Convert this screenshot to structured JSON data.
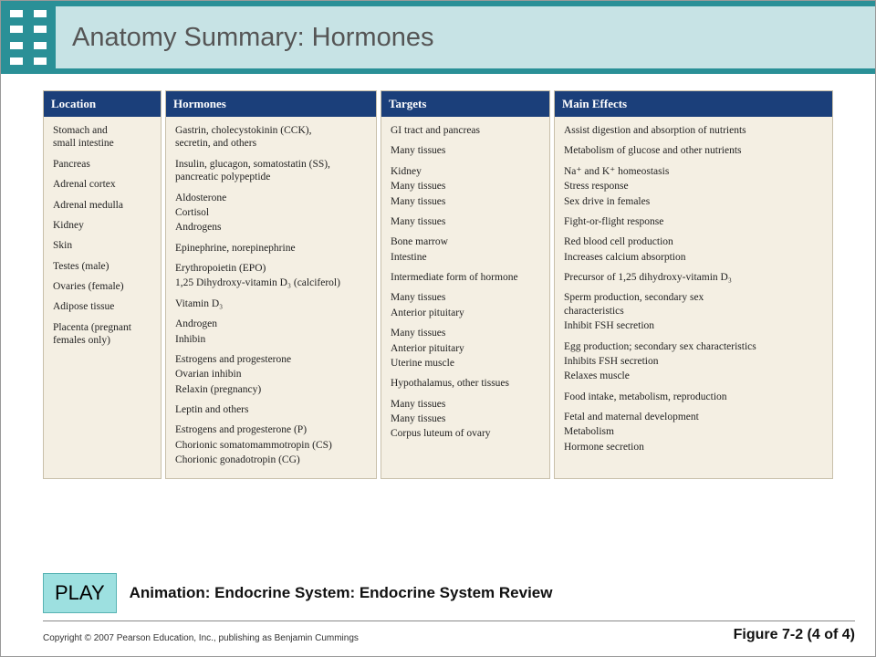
{
  "theme": {
    "header_bg": "#2a9097",
    "header_panel_bg": "#c7e3e5",
    "col_header_bg": "#1b3f7a",
    "col_header_fg": "#ffffff",
    "col_body_bg": "#f4efe3",
    "play_bg": "#9de0e0"
  },
  "header": {
    "title": "Anatomy Summary: Hormones"
  },
  "columns": [
    {
      "header": "Location",
      "groups": [
        [
          "Stomach and\n small intestine"
        ],
        [
          "Pancreas"
        ],
        [
          "Adrenal cortex",
          " ",
          " "
        ],
        [
          "Adrenal medulla"
        ],
        [
          "Kidney",
          " "
        ],
        [
          "Skin"
        ],
        [
          "Testes (male)",
          " "
        ],
        [
          "Ovaries (female)",
          " ",
          " "
        ],
        [
          "Adipose tissue"
        ],
        [
          "Placenta (pregnant\n females only)",
          " "
        ]
      ]
    },
    {
      "header": "Hormones",
      "groups": [
        [
          "Gastrin, cholecystokinin (CCK),\n secretin, and others"
        ],
        [
          "Insulin, glucagon, somatostatin (SS),\n pancreatic polypeptide"
        ],
        [
          "Aldosterone",
          "Cortisol",
          "Androgens"
        ],
        [
          "Epinephrine, norepinephrine"
        ],
        [
          "Erythropoietin (EPO)",
          "1,25 Dihydroxy-vitamin D₃ (calciferol)"
        ],
        [
          "Vitamin D₃"
        ],
        [
          "Androgen",
          "Inhibin"
        ],
        [
          "Estrogens and progesterone",
          "Ovarian inhibin",
          "Relaxin (pregnancy)"
        ],
        [
          "Leptin and others"
        ],
        [
          "Estrogens and progesterone (P)",
          "Chorionic somatomammotropin (CS)",
          "Chorionic gonadotropin (CG)"
        ]
      ]
    },
    {
      "header": "Targets",
      "groups": [
        [
          "GI tract and pancreas",
          " "
        ],
        [
          "Many tissues",
          " "
        ],
        [
          "Kidney",
          "Many tissues",
          "Many tissues"
        ],
        [
          "Many tissues"
        ],
        [
          "Bone marrow",
          "Intestine"
        ],
        [
          "Intermediate form of hormone"
        ],
        [
          "Many tissues",
          "Anterior pituitary"
        ],
        [
          "Many tissues",
          "Anterior pituitary",
          "Uterine muscle"
        ],
        [
          "Hypothalamus, other tissues"
        ],
        [
          "Many tissues",
          "Many tissues",
          "Corpus luteum of ovary"
        ]
      ]
    },
    {
      "header": "Main Effects",
      "groups": [
        [
          "Assist digestion and absorption of nutrients",
          " "
        ],
        [
          "Metabolism of glucose and other nutrients",
          " "
        ],
        [
          "Na⁺ and K⁺ homeostasis",
          "Stress response",
          "Sex drive in females"
        ],
        [
          "Fight-or-flight response"
        ],
        [
          "Red blood cell production",
          "Increases calcium absorption"
        ],
        [
          "Precursor of 1,25 dihydroxy-vitamin D₃"
        ],
        [
          "Sperm production, secondary sex\n   characteristics",
          "Inhibit FSH secretion"
        ],
        [
          "Egg production; secondary sex characteristics",
          "Inhibits FSH secretion",
          "Relaxes muscle"
        ],
        [
          "Food intake, metabolism, reproduction"
        ],
        [
          "Fetal and maternal development",
          "Metabolism",
          "Hormone secretion"
        ]
      ]
    }
  ],
  "footer": {
    "play_label": "PLAY",
    "animation_label": "Animation: Endocrine System: Endocrine System Review",
    "copyright": "Copyright © 2007 Pearson Education, Inc., publishing as Benjamin Cummings",
    "figure_no": "Figure 7-2 (4 of 4)"
  }
}
